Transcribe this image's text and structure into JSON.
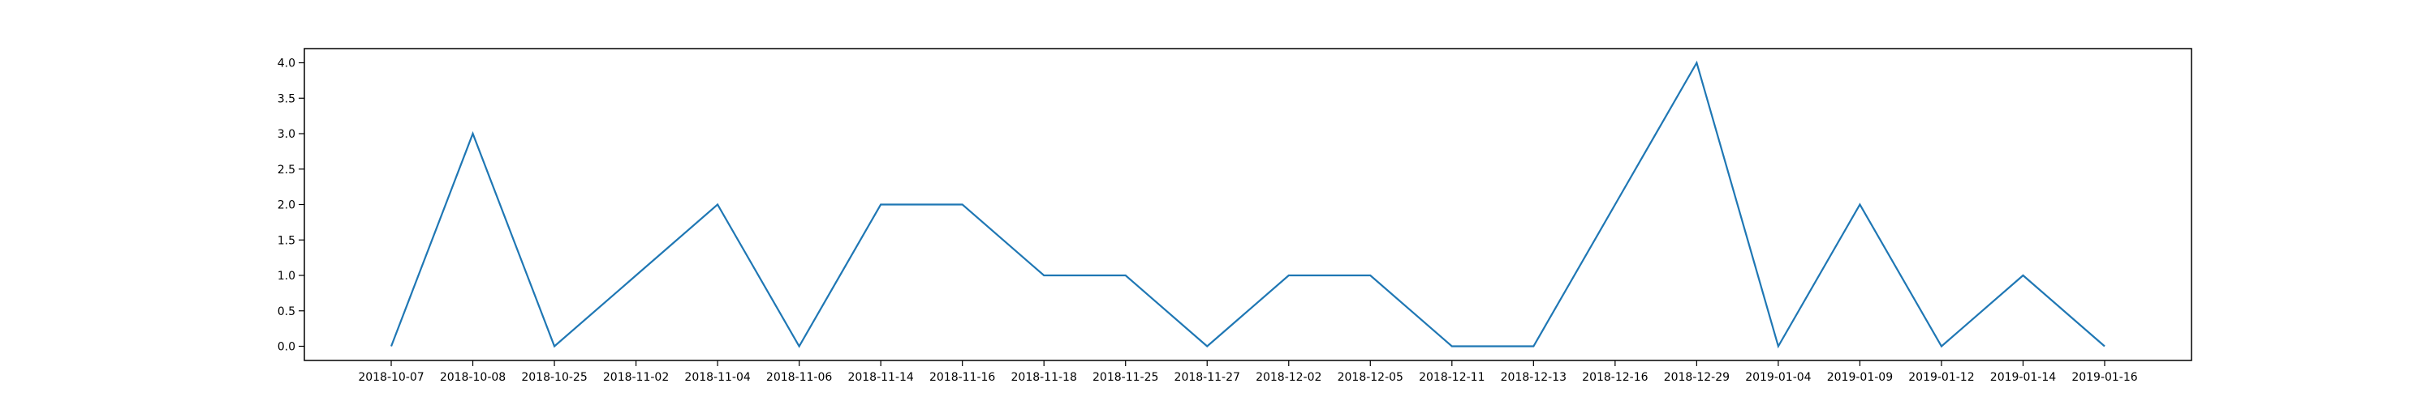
{
  "chart_data": {
    "type": "line",
    "title": "",
    "xlabel": "",
    "ylabel": "",
    "categories": [
      "2018-10-07",
      "2018-10-08",
      "2018-10-25",
      "2018-11-02",
      "2018-11-04",
      "2018-11-06",
      "2018-11-14",
      "2018-11-16",
      "2018-11-18",
      "2018-11-25",
      "2018-11-27",
      "2018-12-02",
      "2018-12-05",
      "2018-12-11",
      "2018-12-13",
      "2018-12-16",
      "2018-12-29",
      "2019-01-04",
      "2019-01-09",
      "2019-01-12",
      "2019-01-14",
      "2019-01-16"
    ],
    "series": [
      {
        "color": "#1f77b4",
        "values": [
          0,
          3,
          0,
          1,
          2,
          0,
          2,
          2,
          1,
          1,
          0,
          1,
          1,
          0,
          0,
          2,
          4,
          0,
          2,
          0,
          1,
          0
        ]
      }
    ],
    "ylim": [
      -0.2,
      4.2
    ],
    "yticks": [
      0.0,
      0.5,
      1.0,
      1.5,
      2.0,
      2.5,
      3.0,
      3.5,
      4.0
    ],
    "ytick_labels": [
      "0.0",
      "0.5",
      "1.0",
      "1.5",
      "2.0",
      "2.5",
      "3.0",
      "3.5",
      "4.0"
    ],
    "grid": false,
    "legend": "none"
  }
}
